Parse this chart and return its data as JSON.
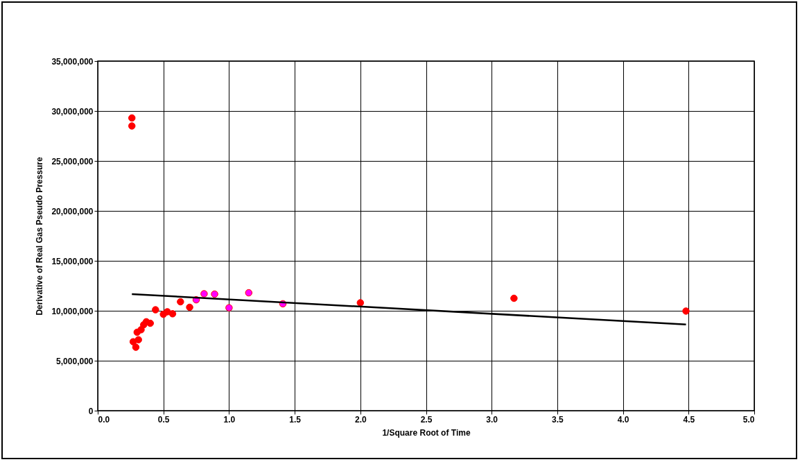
{
  "chart_data": {
    "type": "scatter",
    "xlabel": "1/Square Root of Time",
    "ylabel": "Derivative of Real Gas Pseudo Pressure",
    "xlim": [
      0,
      5
    ],
    "xticks": [
      {
        "value": 0,
        "label": "0.0"
      },
      {
        "value": 0.5,
        "label": "0.5"
      },
      {
        "value": 1,
        "label": "1.0"
      },
      {
        "value": 1.5,
        "label": "1.5"
      },
      {
        "value": 2,
        "label": "2.0"
      },
      {
        "value": 2.5,
        "label": "2.5"
      },
      {
        "value": 3,
        "label": "3.0"
      },
      {
        "value": 3.5,
        "label": "3.5"
      },
      {
        "value": 4,
        "label": "4.0"
      },
      {
        "value": 4.5,
        "label": "4.5"
      },
      {
        "value": 5,
        "label": "5.0"
      }
    ],
    "ylim": [
      0,
      35000000
    ],
    "yticks": [
      0,
      {
        "value": 5000000,
        "label": "5,000,000"
      },
      {
        "value": 10000000,
        "label": "10,000,000"
      },
      {
        "value": 15000000,
        "label": "15,000,000"
      },
      {
        "value": 20000000,
        "label": "20,000,000"
      },
      {
        "value": 25000000,
        "label": "25,000,000"
      },
      {
        "value": 30000000,
        "label": "30,000,000"
      },
      {
        "value": 35000000,
        "label": "35,000,000"
      }
    ],
    "grid": true,
    "marker": "circle",
    "series": [
      {
        "color": "#ff0000",
        "x": [
          0.26,
          0.26,
          0.27,
          0.29,
          0.3,
          0.31,
          0.33,
          0.35,
          0.37,
          0.4,
          0.44,
          0.5,
          0.53,
          0.57,
          0.63,
          0.7,
          2.0,
          3.17,
          4.48
        ],
        "values": [
          29300000,
          28500000,
          6900000,
          6350000,
          7850000,
          7100000,
          8100000,
          8600000,
          8900000,
          8750000,
          10100000,
          9650000,
          9900000,
          9700000,
          10900000,
          10350000,
          10800000,
          11250000,
          9970000
        ]
      },
      {
        "color": "#ff00ff",
        "x": [
          0.75,
          0.81,
          0.89,
          1.0,
          1.15,
          1.41
        ],
        "values": [
          11100000,
          11700000,
          11670000,
          10300000,
          11800000,
          10700000
        ]
      },
      {
        "type": "line",
        "color": "#000000",
        "marker": "none",
        "line_style": "solid",
        "x": [
          0.26,
          4.48
        ],
        "values": [
          11670000,
          8630000
        ]
      }
    ]
  }
}
